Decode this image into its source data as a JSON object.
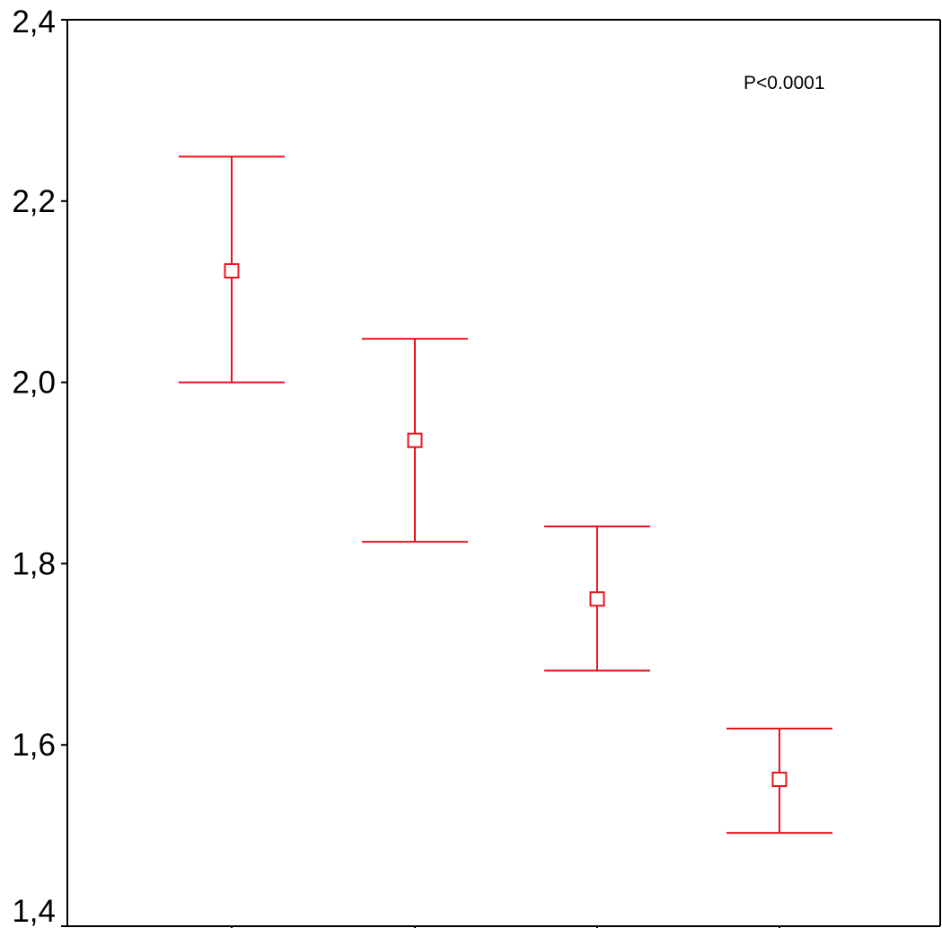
{
  "chart_data": {
    "type": "scatter",
    "subtype": "error-bar",
    "title": "",
    "xlabel": "",
    "ylabel": "",
    "x_tick_labels": [],
    "ylim": [
      1.4,
      2.4
    ],
    "yticks": [
      {
        "value": 2.4,
        "label": "2,4"
      },
      {
        "value": 2.2,
        "label": "2,2"
      },
      {
        "value": 2.0,
        "label": "2,0"
      },
      {
        "value": 1.8,
        "label": "1,8"
      },
      {
        "value": 1.6,
        "label": "1,6"
      },
      {
        "value": 1.4,
        "label": "1,4"
      }
    ],
    "grid": false,
    "legend": false,
    "marker": "open-square",
    "color": "#e8141c",
    "points": [
      {
        "mean": 2.123,
        "lower": 2.0,
        "upper": 2.249
      },
      {
        "mean": 1.936,
        "lower": 1.824,
        "upper": 2.048
      },
      {
        "mean": 1.761,
        "lower": 1.682,
        "upper": 1.841
      },
      {
        "mean": 1.562,
        "lower": 1.503,
        "upper": 1.618
      }
    ],
    "annotations": [
      {
        "text": "P<0.0001",
        "placement": "top-right"
      }
    ]
  }
}
